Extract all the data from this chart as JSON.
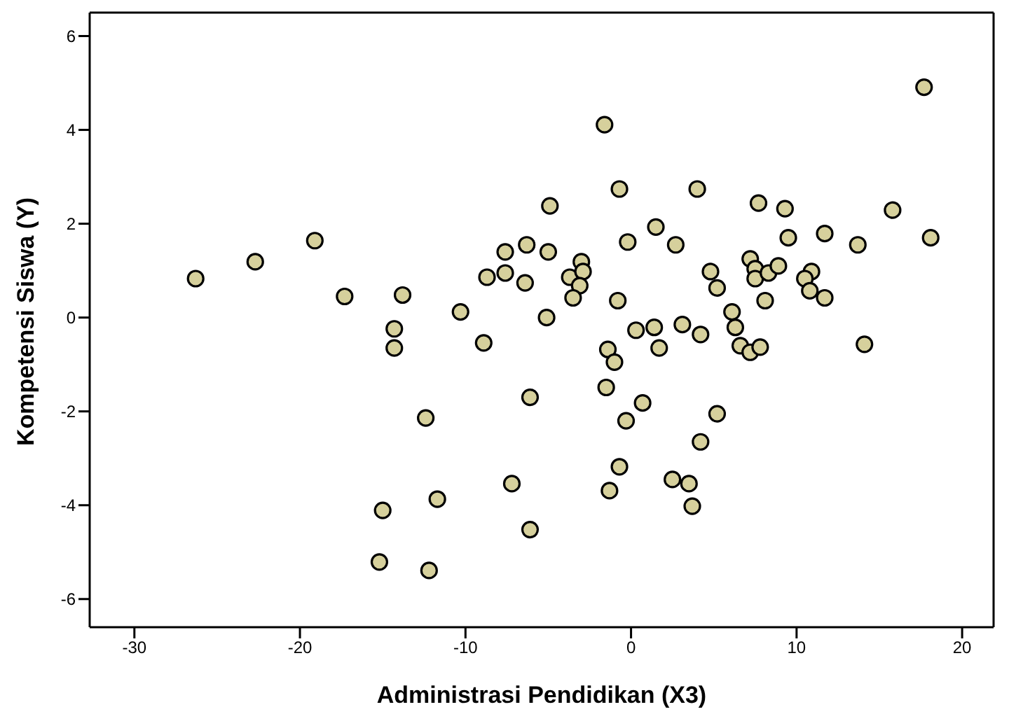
{
  "chart_data": {
    "type": "scatter",
    "xlabel": "Administrasi Pendidikan (X3)",
    "ylabel": "Kompetensi Siswa (Y)",
    "x": [
      -26.3,
      -22.7,
      -19.1,
      -17.3,
      -13.8,
      -14.3,
      -14.3,
      -10.3,
      -8.7,
      -8.9,
      -7.6,
      -7.6,
      -6.3,
      -6.4,
      -4.9,
      -5.0,
      -5.1,
      -3.7,
      -3.0,
      -2.9,
      -3.1,
      -3.5,
      -1.6,
      17.7,
      -0.7,
      4.0,
      7.7,
      9.3,
      15.8,
      1.5,
      -0.2,
      2.7,
      9.5,
      11.7,
      13.7,
      18.1,
      7.2,
      7.5,
      7.5,
      8.3,
      8.9,
      10.9,
      10.5,
      10.8,
      11.7,
      4.8,
      5.2,
      8.1,
      -0.8,
      6.1,
      6.3,
      0.3,
      1.4,
      3.1,
      4.2,
      -1.4,
      -1.0,
      1.7,
      6.6,
      7.2,
      7.8,
      14.1,
      -1.5,
      0.7,
      -0.3,
      5.2,
      4.2,
      -0.7,
      2.5,
      3.5,
      -1.3,
      3.7,
      -6.1,
      -12.4,
      -7.2,
      -11.7,
      -15.0,
      -6.1,
      -15.2,
      -12.2
    ],
    "values": [
      0.83,
      1.19,
      1.64,
      0.45,
      0.48,
      -0.24,
      -0.65,
      0.12,
      0.86,
      -0.54,
      1.4,
      0.95,
      1.55,
      0.74,
      2.38,
      1.4,
      0.0,
      0.86,
      1.19,
      0.98,
      0.68,
      0.42,
      4.11,
      4.91,
      2.74,
      2.74,
      2.44,
      2.32,
      2.29,
      1.93,
      1.61,
      1.55,
      1.7,
      1.79,
      1.55,
      1.7,
      1.25,
      1.04,
      0.83,
      0.95,
      1.1,
      0.98,
      0.83,
      0.57,
      0.42,
      0.98,
      0.63,
      0.36,
      0.36,
      0.12,
      -0.21,
      -0.27,
      -0.21,
      -0.15,
      -0.36,
      -0.68,
      -0.95,
      -0.65,
      -0.6,
      -0.74,
      -0.63,
      -0.57,
      -1.49,
      -1.82,
      -2.2,
      -2.05,
      -2.65,
      -3.18,
      -3.45,
      -3.54,
      -3.69,
      -4.02,
      -1.7,
      -2.14,
      -3.54,
      -3.87,
      -4.11,
      -4.52,
      -5.21,
      -5.39
    ],
    "color": "#d6d09c",
    "marker": "circle",
    "xlim": [
      -32.7,
      21.9
    ],
    "xticks": [
      -30,
      -20,
      -10,
      0,
      10,
      20
    ],
    "ylim": [
      -6.6,
      6.5
    ],
    "yticks": [
      -6,
      -4,
      -2,
      0,
      2,
      4,
      6
    ]
  }
}
